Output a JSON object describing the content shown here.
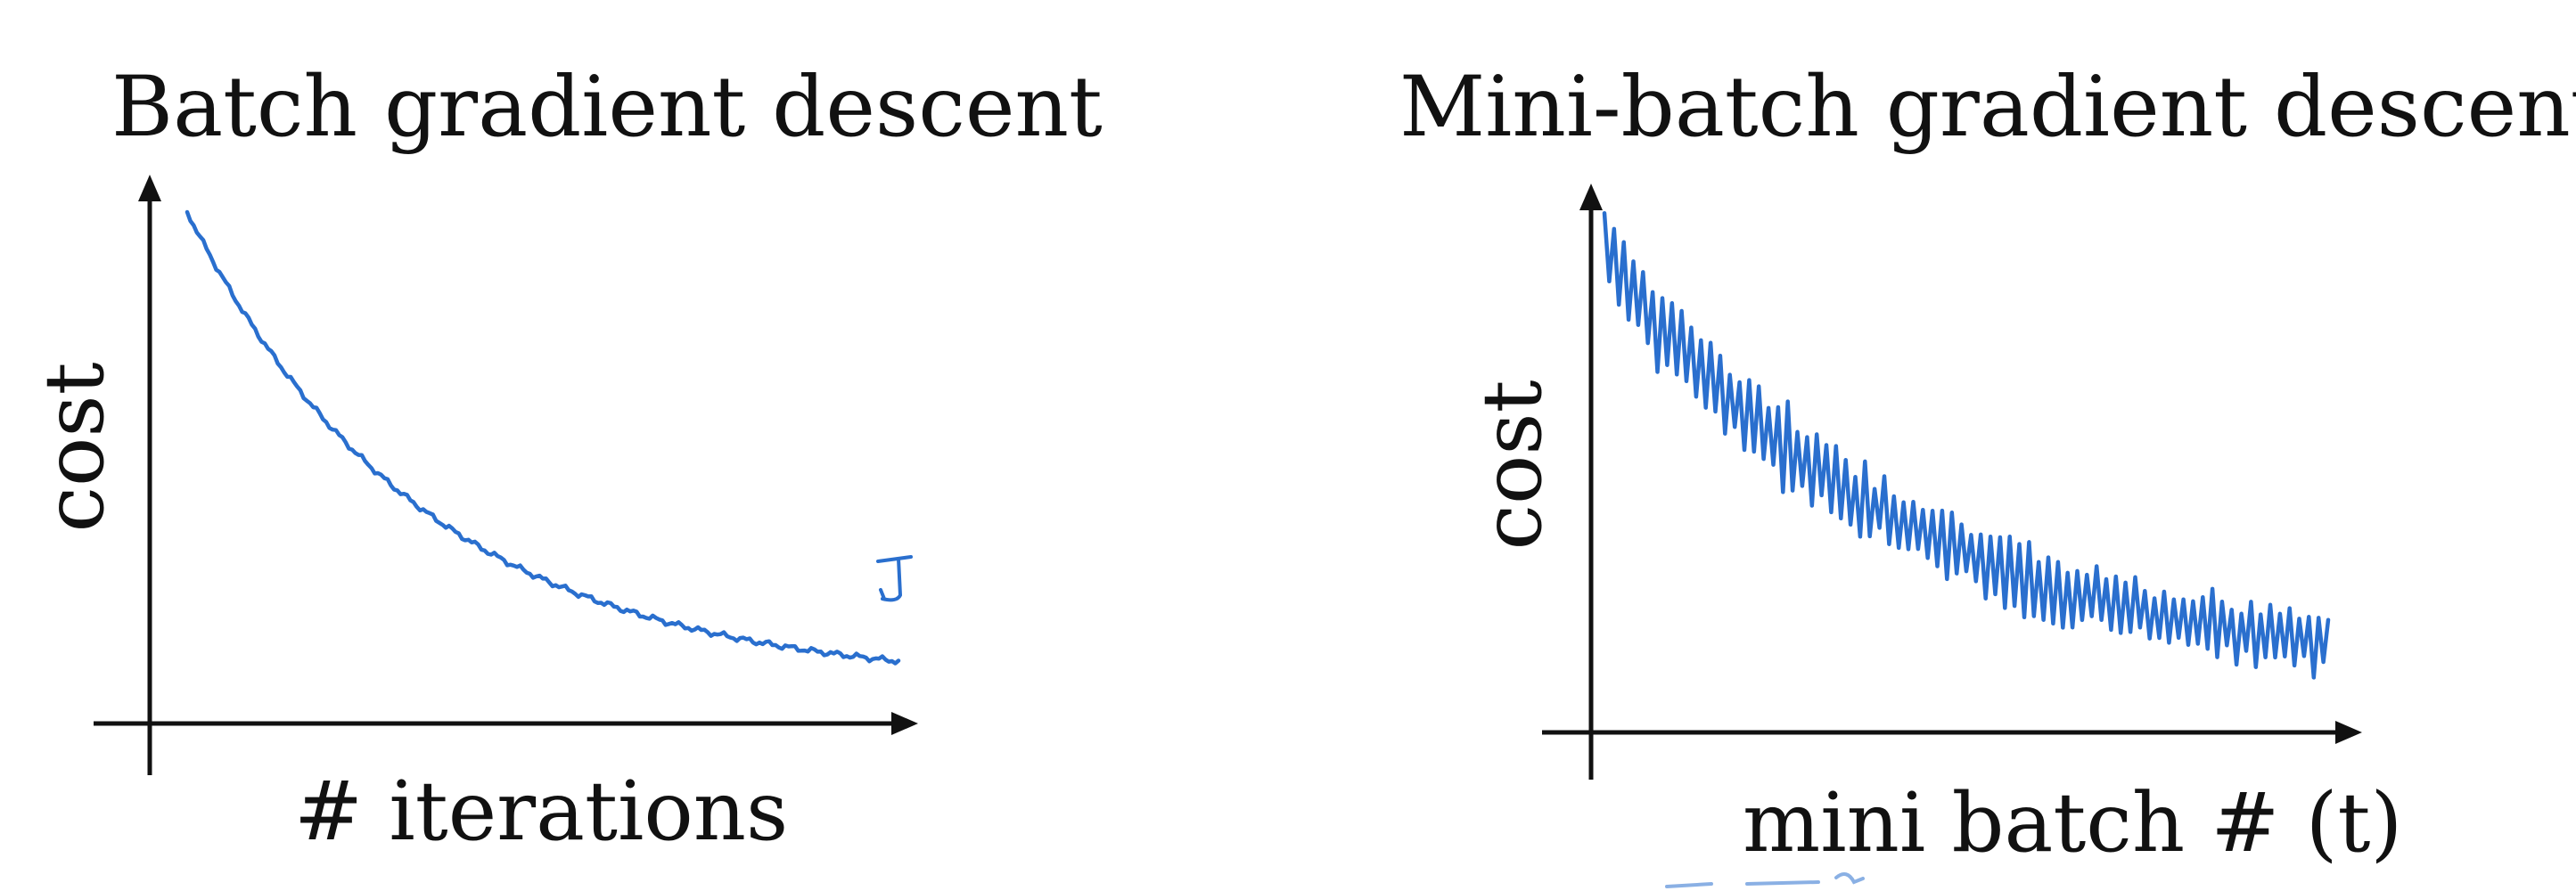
{
  "left_panel": {
    "title": "Batch gradient descent",
    "ylabel": "cost",
    "xlabel": "# iterations",
    "annotation": "J"
  },
  "right_panel": {
    "title": "Mini-batch gradient descent",
    "ylabel": "cost",
    "xlabel": "mini batch # (t)"
  },
  "colors": {
    "ink": "#111111",
    "pen": "#2a6fce"
  }
}
